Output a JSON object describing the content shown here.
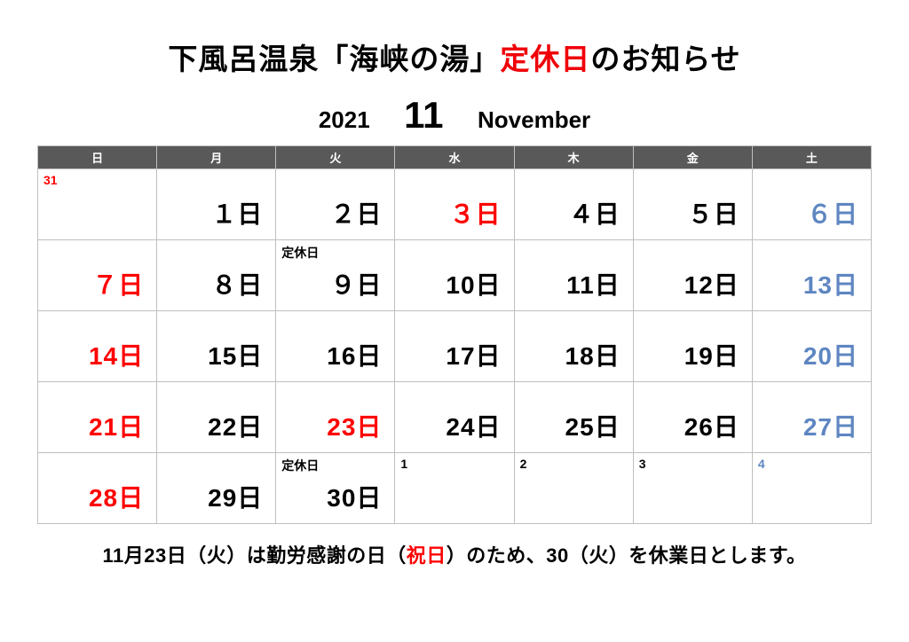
{
  "title": {
    "part1": "下風呂温泉「海峡の湯」",
    "part2_red": "定休日",
    "part3": "のお知らせ"
  },
  "subtitle": {
    "year": "2021",
    "month": "11",
    "month_en": "November"
  },
  "weekday_headers": [
    "日",
    "月",
    "火",
    "水",
    "木",
    "金",
    "土"
  ],
  "colors": {
    "header_gray": "#595959",
    "header_sun": "#ff0000",
    "header_sat": "#2b6ef2",
    "closed_bg": "#ff0000",
    "text_sun": "#ff0000",
    "text_sat": "#5e86c1",
    "text_black": "#000000",
    "border": "#bfbfbf",
    "background": "#ffffff"
  },
  "closed_label": "定休日",
  "cells": [
    [
      {
        "prev": "31"
      },
      {
        "d": "１日"
      },
      {
        "d": "２日"
      },
      {
        "d": "３日",
        "hol": true
      },
      {
        "d": "４日"
      },
      {
        "d": "５日"
      },
      {
        "d": "６日",
        "sat": true
      }
    ],
    [
      {
        "d": "７日",
        "sun": true
      },
      {
        "d": "８日"
      },
      {
        "d": "９日",
        "closed": true
      },
      {
        "d": "10日"
      },
      {
        "d": "11日"
      },
      {
        "d": "12日"
      },
      {
        "d": "13日",
        "sat": true
      }
    ],
    [
      {
        "d": "14日",
        "sun": true
      },
      {
        "d": "15日"
      },
      {
        "d": "16日"
      },
      {
        "d": "17日"
      },
      {
        "d": "18日"
      },
      {
        "d": "19日"
      },
      {
        "d": "20日",
        "sat": true
      }
    ],
    [
      {
        "d": "21日",
        "sun": true
      },
      {
        "d": "22日"
      },
      {
        "d": "23日",
        "hol": true
      },
      {
        "d": "24日"
      },
      {
        "d": "25日"
      },
      {
        "d": "26日"
      },
      {
        "d": "27日",
        "sat": true
      }
    ],
    [
      {
        "d": "28日",
        "sun": true
      },
      {
        "d": "29日"
      },
      {
        "d": "30日",
        "closed": true
      },
      {
        "next": "1"
      },
      {
        "next": "2"
      },
      {
        "next": "3"
      },
      {
        "next": "4",
        "sat": true
      }
    ]
  ],
  "footer": {
    "a": "11月23日（火）は勤労感謝の日（",
    "b_red": "祝日",
    "c": "）のため、30（火）を休業日とします。"
  }
}
